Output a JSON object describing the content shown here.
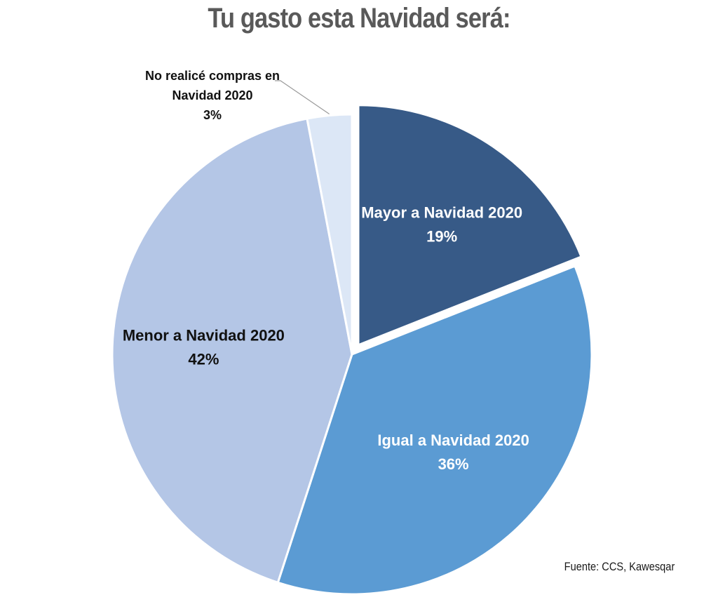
{
  "chart_data": {
    "type": "pie",
    "title": "Tu gasto esta Navidad será:",
    "source": "Fuente: CCS, Kawesqar",
    "slices": [
      {
        "label": "Mayor a Navidad 2020",
        "value": 19,
        "value_label": "19%",
        "color": "#375A87",
        "text_color": "#ffffff",
        "exploded": true
      },
      {
        "label": "Igual a Navidad 2020",
        "value": 36,
        "value_label": "36%",
        "color": "#5B9BD3",
        "text_color": "#ffffff",
        "exploded": false
      },
      {
        "label": "Menor a Navidad 2020",
        "value": 42,
        "value_label": "42%",
        "color": "#B4C6E6",
        "text_color": "#111111",
        "exploded": false
      },
      {
        "label": "No realicé compras en Navidad 2020",
        "value": 3,
        "value_label": "3%",
        "color": "#DCE7F6",
        "text_color": "#111111",
        "exploded": false,
        "label_lines": [
          "No realicé compras en",
          "Navidad 2020"
        ]
      }
    ]
  }
}
